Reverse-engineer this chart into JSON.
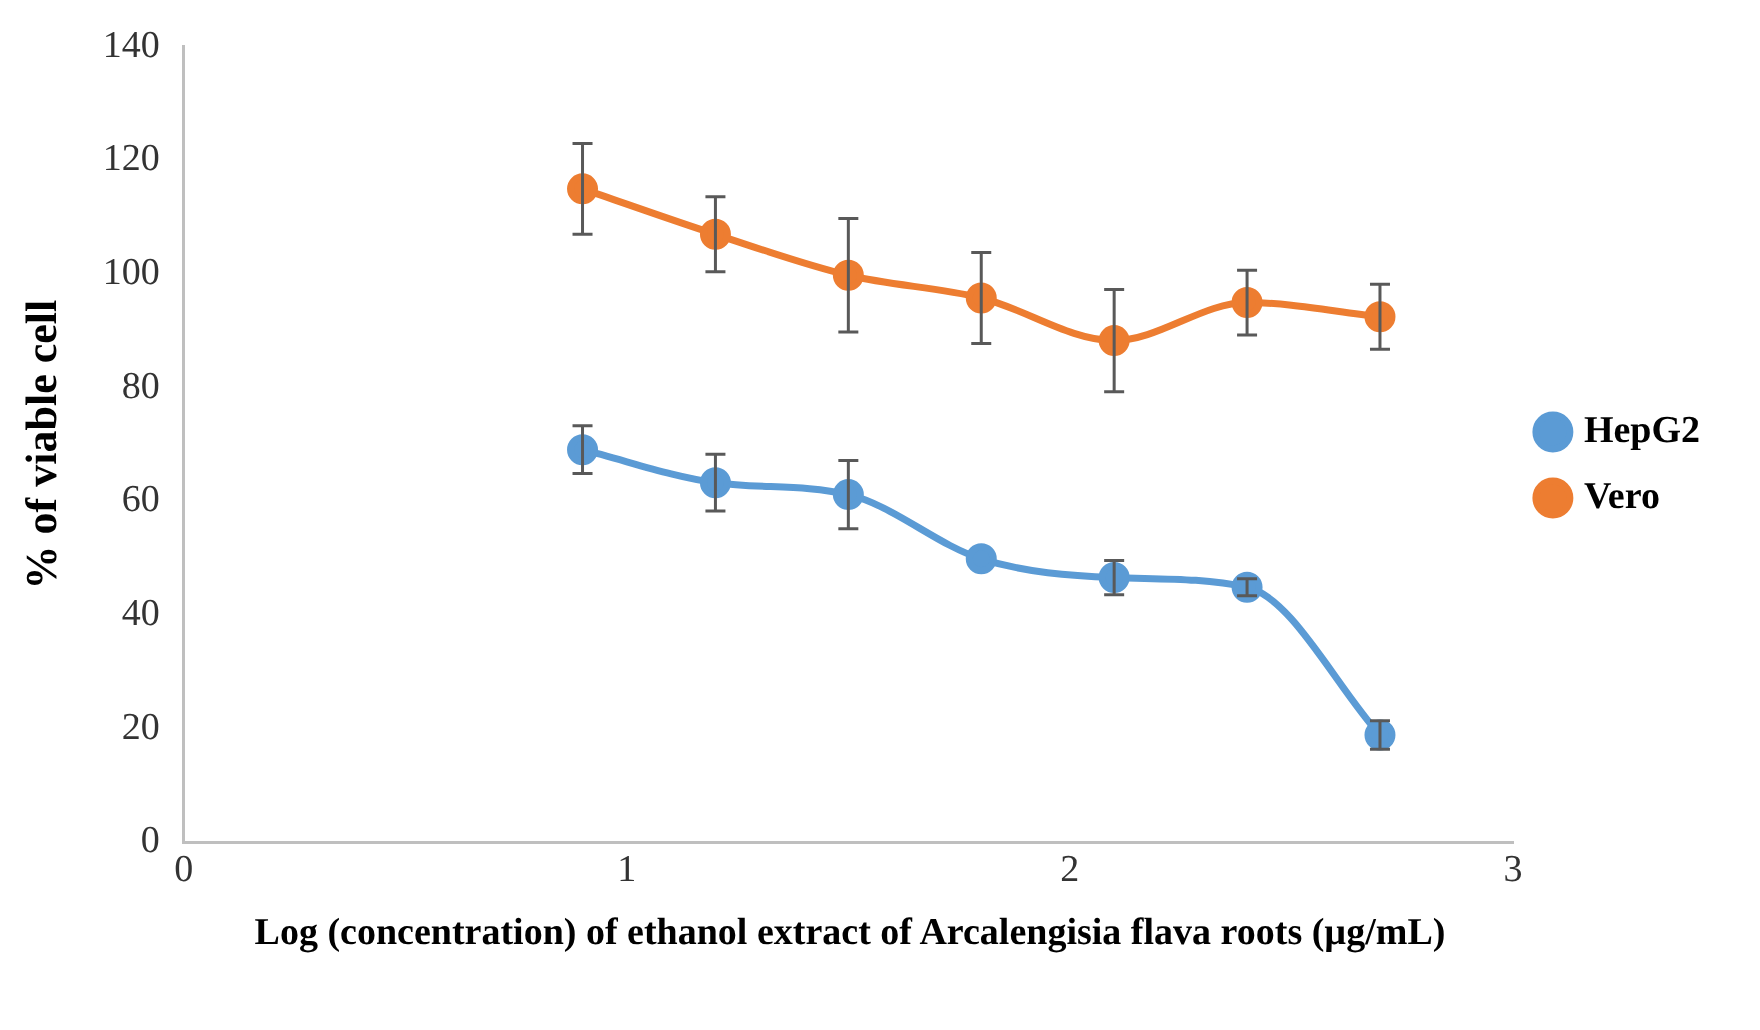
{
  "chart_data": {
    "type": "line",
    "xlabel": "Log (concentration) of ethanol extract of Arcalengisia flava roots (µg/mL)",
    "ylabel": "% of viable cell",
    "x": [
      0.9,
      1.2,
      1.5,
      1.8,
      2.1,
      2.4,
      2.7
    ],
    "series": [
      {
        "name": "HepG2",
        "color": "#5b9bd5",
        "values": [
          69.1,
          63.3,
          61.2,
          49.9,
          46.6,
          44.9,
          18.9
        ],
        "errors": [
          4.2,
          5,
          6,
          null,
          3,
          1.5,
          2.5
        ]
      },
      {
        "name": "Vero",
        "color": "#ed7d31",
        "values": [
          115,
          107,
          99.8,
          95.8,
          88.3,
          95,
          92.5
        ],
        "errors": [
          8,
          6.6,
          10,
          8,
          9,
          5.7,
          5.7
        ]
      }
    ],
    "xlim": [
      0,
      3
    ],
    "xticks": [
      0,
      1,
      2,
      3
    ],
    "ylim": [
      0,
      140
    ],
    "yticks": [
      0,
      20,
      40,
      60,
      80,
      100,
      120,
      140
    ],
    "grid": false,
    "legend": "right",
    "marker": "circle",
    "line_style": "solid"
  }
}
